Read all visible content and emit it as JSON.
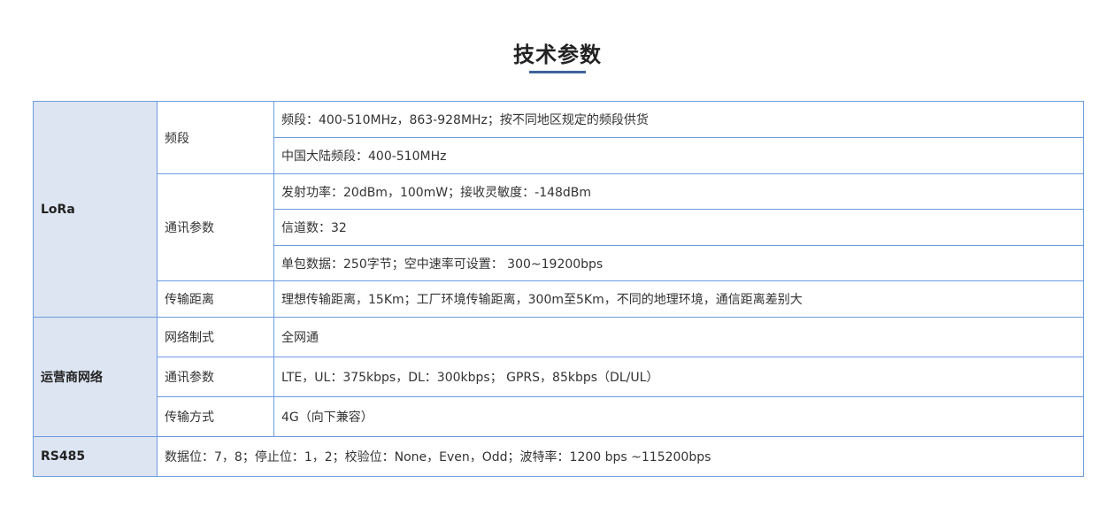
{
  "title": "技术参数",
  "colors": {
    "accent": "#3d639c",
    "border": "#6c9be0",
    "category_bg": "#dde5f2"
  },
  "sections": [
    {
      "name": "LoRa",
      "groups": [
        {
          "label": "频段",
          "values": [
            "频段：400-510MHz，863-928MHz；按不同地区规定的频段供货",
            "中国大陆频段：400-510MHz"
          ]
        },
        {
          "label": "通讯参数",
          "values": [
            "发射功率：20dBm，100mW；接收灵敏度：-148dBm",
            "信道数：32",
            "单包数据：250字节；空中速率可设置： 300~19200bps"
          ]
        },
        {
          "label": "传输距离",
          "values": [
            "理想传输距离，15Km；工厂环境传输距离，300m至5Km，不同的地理环境，通信距离差别大"
          ]
        }
      ]
    },
    {
      "name": "运营商网络",
      "groups": [
        {
          "label": "网络制式",
          "values": [
            "全网通"
          ]
        },
        {
          "label": "通讯参数",
          "values": [
            "LTE，UL：375kbps，DL：300kbps； GPRS，85kbps（DL/UL）"
          ]
        },
        {
          "label": "传输方式",
          "values": [
            "4G（向下兼容）"
          ]
        }
      ]
    },
    {
      "name": "RS485",
      "value": "数据位：7，8；停止位：1，2；校验位：None，Even，Odd；波特率：1200 bps ~115200bps"
    }
  ]
}
